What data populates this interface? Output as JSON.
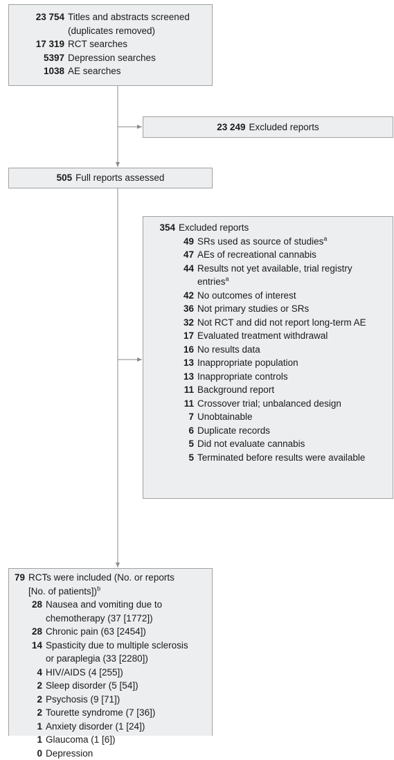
{
  "screened": {
    "count": "23 754",
    "label": "Titles and abstracts screened (duplicates removed)",
    "items": [
      {
        "count": "17 319",
        "label": "RCT searches"
      },
      {
        "count": "5397",
        "label": "Depression searches"
      },
      {
        "count": "1038",
        "label": "AE searches"
      }
    ]
  },
  "excluded_screening": {
    "count": "23 249",
    "label": "Excluded reports"
  },
  "assessed": {
    "count": "505",
    "label": "Full reports assessed"
  },
  "excluded_full": {
    "count": "354",
    "label": "Excluded reports",
    "items": [
      {
        "count": "49",
        "label": "SRs used as source of studies",
        "note": "a"
      },
      {
        "count": "47",
        "label": "AEs of recreational cannabis"
      },
      {
        "count": "44",
        "label": "Results not yet available, trial registry entries",
        "note": "a"
      },
      {
        "count": "42",
        "label": "No outcomes of interest"
      },
      {
        "count": "36",
        "label": "Not primary studies or SRs"
      },
      {
        "count": "32",
        "label": "Not RCT and did not report long-term AE"
      },
      {
        "count": "17",
        "label": "Evaluated treatment withdrawal"
      },
      {
        "count": "16",
        "label": "No results data"
      },
      {
        "count": "13",
        "label": "Inappropriate population"
      },
      {
        "count": "13",
        "label": "Inappropriate controls"
      },
      {
        "count": "11",
        "label": "Background report"
      },
      {
        "count": "11",
        "label": "Crossover trial; unbalanced design"
      },
      {
        "count": "7",
        "label": "Unobtainable"
      },
      {
        "count": "6",
        "label": "Duplicate records"
      },
      {
        "count": "5",
        "label": "Did not evaluate cannabis"
      },
      {
        "count": "5",
        "label": "Terminated before results were available"
      }
    ]
  },
  "included": {
    "count": "79",
    "label": "RCTs were included (No. or reports [No. of patients])",
    "note": "b",
    "items": [
      {
        "count": "28",
        "label": "Nausea and vomiting due to chemotherapy (37 [1772])"
      },
      {
        "count": "28",
        "label": "Chronic pain (63 [2454])"
      },
      {
        "count": "14",
        "label": "Spasticity due to multiple sclerosis or paraplegia (33 [2280])"
      },
      {
        "count": "4",
        "label": "HIV/AIDS (4 [255])"
      },
      {
        "count": "2",
        "label": "Sleep disorder (5 [54])"
      },
      {
        "count": "2",
        "label": "Psychosis (9 [71])"
      },
      {
        "count": "2",
        "label": "Tourette syndrome (7 [36])"
      },
      {
        "count": "1",
        "label": "Anxiety disorder (1 [24])"
      },
      {
        "count": "1",
        "label": "Glaucoma (1 [6])"
      },
      {
        "count": "0",
        "label": "Depression"
      }
    ]
  }
}
